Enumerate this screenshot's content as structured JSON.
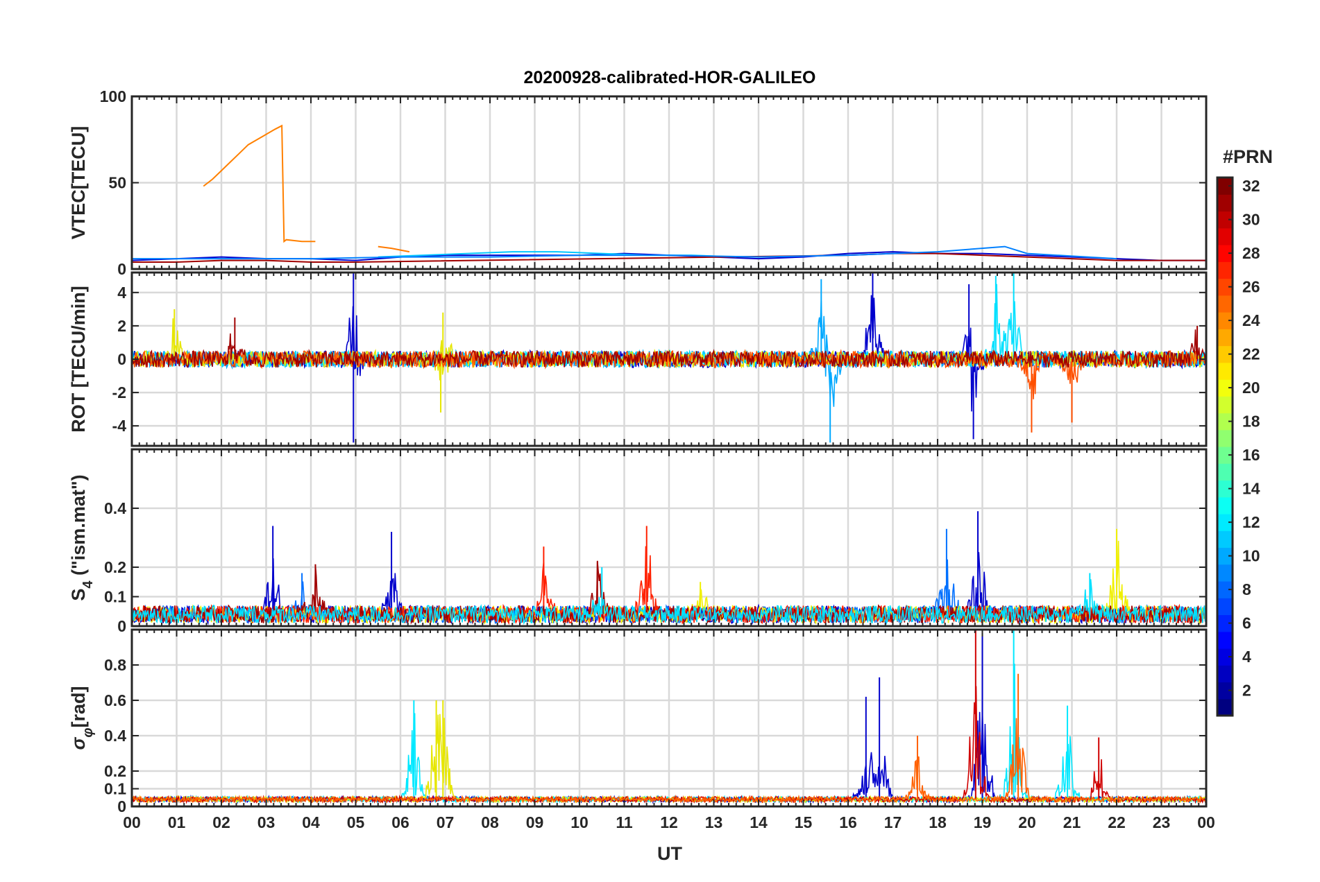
{
  "chart_data": {
    "type": "line",
    "title": "20200928-calibrated-HOR-GALILEO",
    "xlabel": "UT",
    "x_ticks": [
      "00",
      "01",
      "02",
      "03",
      "04",
      "05",
      "06",
      "07",
      "08",
      "09",
      "10",
      "11",
      "12",
      "13",
      "14",
      "15",
      "16",
      "17",
      "18",
      "19",
      "20",
      "21",
      "22",
      "23",
      "00"
    ],
    "xlim_hours": [
      0,
      24
    ],
    "grid": true,
    "colorbar": {
      "label": "#PRN",
      "ticks": [
        2,
        4,
        6,
        8,
        10,
        12,
        14,
        16,
        18,
        20,
        22,
        24,
        26,
        28,
        30,
        32
      ],
      "range": [
        1,
        32
      ],
      "colormap": "jet"
    },
    "panels": [
      {
        "id": "vtec",
        "ylabel": "VTEC[TECU]",
        "ylim": [
          0,
          100
        ],
        "yticks": [
          0,
          50,
          100
        ],
        "series": [
          {
            "prn": 24,
            "color": "#ff8000",
            "x": [
              1.6,
              1.8,
              2.0,
              2.2,
              2.4,
              2.6,
              2.8,
              3.0,
              3.2,
              3.35,
              3.4,
              3.45,
              3.8,
              4.1
            ],
            "y": [
              48,
              52,
              57,
              62,
              67,
              72,
              75,
              78,
              81,
              83,
              16,
              17,
              16,
              16
            ]
          },
          {
            "prn": 24,
            "color": "#ff7a00",
            "x": [
              5.5,
              5.8,
              6.0,
              6.2
            ],
            "y": [
              13,
              12,
              11,
              10
            ]
          },
          {
            "prn": 2,
            "color": "#0000cc",
            "x": [
              0,
              1,
              2,
              3,
              4,
              5,
              6,
              7,
              8,
              9,
              10,
              11,
              12,
              13,
              14,
              15,
              16,
              17,
              18,
              19,
              20,
              21,
              22,
              23,
              24
            ],
            "y": [
              5,
              6,
              7,
              6,
              6,
              5,
              7,
              8,
              8,
              8,
              8,
              9,
              8,
              7,
              6,
              7,
              9,
              10,
              9,
              9,
              8,
              7,
              6,
              5,
              5
            ]
          },
          {
            "prn": 12,
            "color": "#00c8ff",
            "x": [
              5.5,
              6.5,
              7.5,
              8.5,
              9.5,
              10.5,
              11.5,
              12.5,
              13.5
            ],
            "y": [
              7,
              8,
              9,
              10,
              10,
              9,
              8,
              8,
              7
            ]
          },
          {
            "prn": 31,
            "color": "#a00000",
            "x": [
              0,
              1,
              2,
              3,
              4,
              5,
              16,
              17,
              18,
              19,
              20,
              21,
              22,
              23,
              24
            ],
            "y": [
              4,
              4,
              5,
              5,
              4,
              4,
              8,
              9,
              9,
              8,
              7,
              6,
              5,
              5,
              5
            ]
          },
          {
            "prn": 9,
            "color": "#0080ff",
            "x": [
              0,
              2,
              4,
              6,
              8,
              10,
              12,
              14,
              16,
              18,
              19.5,
              20,
              22
            ],
            "y": [
              6,
              6,
              6,
              7,
              7,
              8,
              8,
              7,
              8,
              10,
              13,
              9,
              6
            ]
          }
        ]
      },
      {
        "id": "rot",
        "ylabel": "ROT [TECU/min]",
        "ylim": [
          -5.2,
          5.2
        ],
        "yticks": [
          -4,
          -2,
          0,
          2,
          4
        ],
        "series": [
          {
            "prn": 2,
            "color": "#0000cc",
            "peaks": [
              {
                "x": 4.95,
                "y": 5.2
              },
              {
                "x": 4.95,
                "y": -5.0
              },
              {
                "x": 16.55,
                "y": 5.2
              },
              {
                "x": 18.7,
                "y": 4.5
              },
              {
                "x": 18.8,
                "y": -4.8
              }
            ]
          },
          {
            "prn": 10,
            "color": "#00a8ff",
            "peaks": [
              {
                "x": 15.4,
                "y": 4.8
              },
              {
                "x": 15.6,
                "y": -5.0
              }
            ]
          },
          {
            "prn": 12,
            "color": "#00e0ff",
            "peaks": [
              {
                "x": 19.7,
                "y": 5.2
              },
              {
                "x": 19.3,
                "y": 5.0
              }
            ]
          },
          {
            "prn": 20,
            "color": "#e6e600",
            "peaks": [
              {
                "x": 0.95,
                "y": 3.0
              },
              {
                "x": 6.95,
                "y": 2.8
              },
              {
                "x": 6.9,
                "y": -3.2
              }
            ]
          },
          {
            "prn": 25,
            "color": "#ff5000",
            "peaks": [
              {
                "x": 20.1,
                "y": -4.4
              },
              {
                "x": 21.0,
                "y": -3.8
              }
            ]
          },
          {
            "prn": 31,
            "color": "#a00000",
            "peaks": [
              {
                "x": 2.3,
                "y": 2.5
              },
              {
                "x": 23.8,
                "y": 2.0
              }
            ]
          }
        ]
      },
      {
        "id": "s4",
        "ylabel": "S4 (\"ism.mat\")",
        "ylabel_main": "S",
        "ylabel_sub": "4",
        "ylabel_rest": " (\"ism.mat\")",
        "ylim": [
          0,
          0.6
        ],
        "yticks": [
          0,
          0.1,
          0.2,
          0.4
        ],
        "ytick_labels": [
          "0",
          "0.1",
          "0.2",
          "0.4"
        ],
        "series": [
          {
            "prn": 2,
            "color": "#0000cc",
            "peaks": [
              {
                "x": 3.15,
                "y": 0.34
              },
              {
                "x": 5.8,
                "y": 0.32
              },
              {
                "x": 18.9,
                "y": 0.39
              }
            ]
          },
          {
            "prn": 9,
            "color": "#0070ff",
            "peaks": [
              {
                "x": 18.2,
                "y": 0.33
              },
              {
                "x": 3.8,
                "y": 0.18
              }
            ]
          },
          {
            "prn": 21,
            "color": "#f0f000",
            "peaks": [
              {
                "x": 22.0,
                "y": 0.33
              },
              {
                "x": 12.7,
                "y": 0.15
              }
            ]
          },
          {
            "prn": 27,
            "color": "#ff2000",
            "peaks": [
              {
                "x": 11.5,
                "y": 0.34
              },
              {
                "x": 9.2,
                "y": 0.27
              }
            ]
          },
          {
            "prn": 31,
            "color": "#a00000",
            "peaks": [
              {
                "x": 4.1,
                "y": 0.21
              },
              {
                "x": 10.4,
                "y": 0.22
              }
            ]
          },
          {
            "prn": 12,
            "color": "#00e0ff",
            "peaks": [
              {
                "x": 21.4,
                "y": 0.18
              },
              {
                "x": 10.5,
                "y": 0.2
              }
            ]
          }
        ]
      },
      {
        "id": "sigma_phi",
        "ylabel": "σφ[rad]",
        "ylabel_main": "σ",
        "ylabel_sub": "φ",
        "ylabel_rest": "[rad]",
        "ylim": [
          0,
          1.0
        ],
        "yticks": [
          0,
          0.1,
          0.2,
          0.4,
          0.6,
          0.8
        ],
        "ytick_labels": [
          "0",
          "0.1",
          "0.2",
          "0.4",
          "0.6",
          "0.8"
        ],
        "series": [
          {
            "prn": 2,
            "color": "#0000cc",
            "peaks": [
              {
                "x": 16.7,
                "y": 0.73
              },
              {
                "x": 16.4,
                "y": 0.62
              },
              {
                "x": 19.0,
                "y": 1.0
              }
            ]
          },
          {
            "prn": 12,
            "color": "#00e8ff",
            "peaks": [
              {
                "x": 6.3,
                "y": 0.6
              },
              {
                "x": 19.7,
                "y": 1.0
              },
              {
                "x": 20.9,
                "y": 0.57
              }
            ]
          },
          {
            "prn": 20,
            "color": "#e6e600",
            "peaks": [
              {
                "x": 6.8,
                "y": 0.6
              },
              {
                "x": 6.95,
                "y": 0.6
              }
            ]
          },
          {
            "prn": 29,
            "color": "#d00000",
            "peaks": [
              {
                "x": 18.85,
                "y": 1.0
              },
              {
                "x": 21.6,
                "y": 0.39
              }
            ]
          },
          {
            "prn": 25,
            "color": "#ff6000",
            "peaks": [
              {
                "x": 17.55,
                "y": 0.4
              },
              {
                "x": 19.8,
                "y": 0.75
              }
            ]
          }
        ]
      }
    ]
  }
}
